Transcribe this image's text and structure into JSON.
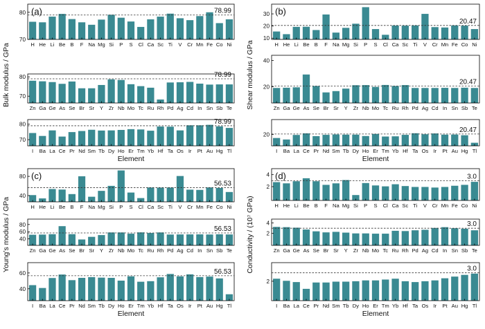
{
  "refs": [
    "78.99",
    "20.47",
    "56.53",
    "3.0"
  ],
  "chart_data": [
    {
      "type": "bar",
      "panel": "(a)",
      "ylabel": "Bulk modulus / GPa",
      "xlabel": "Element",
      "reference_value": 78.99,
      "reference_label": "78.99",
      "rows": [
        {
          "categories": [
            "H",
            "He",
            "Li",
            "Be",
            "B",
            "F",
            "Na",
            "Mg",
            "Si",
            "P",
            "S",
            "Cl",
            "Ca",
            "Sc",
            "Ti",
            "V",
            "Cr",
            "Mn",
            "Fe",
            "Co",
            "Ni"
          ],
          "values": [
            76.5,
            76.3,
            78.4,
            79.4,
            77.5,
            76.3,
            75.4,
            77.3,
            79.1,
            78.0,
            76.6,
            74.6,
            77.4,
            78.4,
            79.5,
            77.8,
            77.1,
            78.6,
            80.0,
            76.0,
            77.4
          ],
          "ylim": [
            70,
            83
          ],
          "yticks": [
            70,
            80
          ]
        },
        {
          "categories": [
            "Zn",
            "Ga",
            "Ge",
            "As",
            "Se",
            "Br",
            "Sr",
            "Y",
            "Zr",
            "Nb",
            "Mo",
            "Tc",
            "Ru",
            "Rh",
            "Pd",
            "Ag",
            "Cd",
            "In",
            "Sn",
            "Sb",
            "Te"
          ],
          "values": [
            78.0,
            77.7,
            77.3,
            76.4,
            77.6,
            74.1,
            74.1,
            75.8,
            78.7,
            78.4,
            76.2,
            75.2,
            74.4,
            68.3,
            77.1,
            77.2,
            77.4,
            76.5,
            76.0,
            76.1,
            76.1
          ],
          "ylim": [
            66.5,
            81.5
          ],
          "yticks": [
            70,
            80
          ]
        },
        {
          "categories": [
            "I",
            "Ba",
            "La",
            "Ce",
            "Pr",
            "Nd",
            "Sm",
            "Tb",
            "Dy",
            "Ho",
            "Er",
            "Tm",
            "Yb",
            "Hf",
            "Ta",
            "Os",
            "Ir",
            "Pt",
            "Au",
            "Hg",
            "Tl"
          ],
          "values": [
            74.3,
            72.4,
            76.0,
            72.0,
            74.9,
            75.6,
            76.4,
            75.9,
            76.0,
            76.3,
            76.8,
            76.6,
            75.8,
            78.5,
            78.4,
            76.0,
            79.3,
            79.3,
            79.6,
            78.6,
            77.6
          ],
          "ylim": [
            66,
            83
          ],
          "yticks": [
            70,
            80
          ]
        }
      ]
    },
    {
      "type": "bar",
      "panel": "(b)",
      "ylabel": "Shear modulus / GPa",
      "xlabel": "Element",
      "reference_value": 20.47,
      "reference_label": "20.47",
      "rows": [
        {
          "categories": [
            "H",
            "He",
            "Li",
            "Be",
            "B",
            "F",
            "Na",
            "Mg",
            "Si",
            "P",
            "S",
            "Cl",
            "Ca",
            "Sc",
            "Ti",
            "V",
            "Cr",
            "Mn",
            "Fe",
            "Co",
            "Ni"
          ],
          "values": [
            15.5,
            13.3,
            19.3,
            19.4,
            16.7,
            29.5,
            14.6,
            18.5,
            21.9,
            35.5,
            17.5,
            12.8,
            20.4,
            20.3,
            20.5,
            30.0,
            19.1,
            18.8,
            20.5,
            20.3,
            17.5
          ],
          "ylim": [
            9,
            38
          ],
          "yticks": [
            10,
            20,
            30
          ]
        },
        {
          "categories": [
            "Zn",
            "Ga",
            "Ge",
            "As",
            "Se",
            "Br",
            "Sr",
            "Y",
            "Zr",
            "Nb",
            "Mo",
            "Tc",
            "Ru",
            "Rh",
            "Pd",
            "Ag",
            "Cd",
            "In",
            "Sn",
            "Sb",
            "Te"
          ],
          "values": [
            19.0,
            19.2,
            19.5,
            29.3,
            20.5,
            15.6,
            16.6,
            18.5,
            21.1,
            21.2,
            19.8,
            21.3,
            20.5,
            21.2,
            19.0,
            19.0,
            19.0,
            19.1,
            19.0,
            19.2,
            19.0
          ],
          "ylim": [
            7.5,
            44
          ],
          "yticks": [
            20,
            40
          ]
        },
        {
          "categories": [
            "I",
            "Ba",
            "La",
            "Ce",
            "Pr",
            "Nd",
            "Sm",
            "Tb",
            "Dy",
            "Ho",
            "Er",
            "Tm",
            "Yb",
            "Hf",
            "Ta",
            "Os",
            "Ir",
            "Pt",
            "Au",
            "Hg",
            "Tl"
          ],
          "values": [
            16.4,
            14.9,
            19.5,
            21.1,
            18.3,
            19.6,
            20.0,
            19.8,
            19.8,
            18.4,
            20.5,
            17.9,
            18.1,
            19.6,
            21.2,
            20.2,
            21.0,
            19.8,
            19.9,
            19.2,
            11.6
          ],
          "ylim": [
            8.5,
            35
          ],
          "yticks": [
            20
          ]
        }
      ]
    },
    {
      "type": "bar",
      "panel": "(c)",
      "ylabel": "Young’s modulus / GPa",
      "xlabel": "Element",
      "reference_value": 56.53,
      "reference_label": "56.53",
      "rows": [
        {
          "categories": [
            "H",
            "He",
            "Li",
            "Be",
            "B",
            "F",
            "Na",
            "Mg",
            "Si",
            "P",
            "S",
            "Cl",
            "Ca",
            "Sc",
            "Ti",
            "V",
            "Cr",
            "Mn",
            "Fe",
            "Co",
            "Ni"
          ],
          "values": [
            41.0,
            34.1,
            53.6,
            52.5,
            43.1,
            80.1,
            37.6,
            49.8,
            60.2,
            92.3,
            46.3,
            34.8,
            56.8,
            56.5,
            56.7,
            80.7,
            52.3,
            51.8,
            56.9,
            55.8,
            47.4
          ],
          "ylim": [
            27,
            96
          ],
          "yticks": [
            40,
            80
          ]
        },
        {
          "categories": [
            "Zn",
            "Ga",
            "Ge",
            "As",
            "Se",
            "Br",
            "Sr",
            "Y",
            "Zr",
            "Nb",
            "Mo",
            "Tc",
            "Ru",
            "Rh",
            "Pd",
            "Ag",
            "Cd",
            "In",
            "Sn",
            "Sb",
            "Te"
          ],
          "values": [
            51.5,
            52.0,
            53.0,
            75.4,
            53.1,
            38.4,
            45.7,
            50.6,
            57.9,
            57.9,
            54.5,
            58.1,
            56.4,
            57.9,
            52.1,
            52.4,
            52.5,
            52.6,
            52.2,
            52.8,
            52.3
          ],
          "ylim": [
            22,
            95
          ],
          "yticks": [
            40,
            60,
            80
          ]
        },
        {
          "categories": [
            "I",
            "Ba",
            "La",
            "Ce",
            "Pr",
            "Nd",
            "Sm",
            "Tb",
            "Dy",
            "Ho",
            "Er",
            "Tm",
            "Yb",
            "Hf",
            "Ta",
            "Os",
            "Ir",
            "Pt",
            "Au",
            "Hg",
            "Tl"
          ],
          "values": [
            44.6,
            41.0,
            53.6,
            58.0,
            50.9,
            53.8,
            54.7,
            54.1,
            53.8,
            50.3,
            55.7,
            48.9,
            49.6,
            54.5,
            58.7,
            55.7,
            58.2,
            54.8,
            55.4,
            53.1,
            33.1
          ],
          "ylim": [
            25,
            73
          ],
          "yticks": [
            40,
            60
          ]
        }
      ]
    },
    {
      "type": "bar",
      "panel": "(d)",
      "ylabel": "Conductivity / (10⁷ GPa)",
      "xlabel": "Element",
      "reference_value": 3.0,
      "reference_label": "3.0",
      "rows": [
        {
          "categories": [
            "H",
            "He",
            "Li",
            "Be",
            "B",
            "F",
            "Na",
            "Mg",
            "Si",
            "P",
            "S",
            "Cl",
            "Ca",
            "Sc",
            "Ti",
            "V",
            "Cr",
            "Mn",
            "Fe",
            "Co",
            "Ni"
          ],
          "values": [
            2.75,
            2.55,
            2.9,
            3.4,
            2.9,
            2.3,
            2.55,
            3.1,
            0.6,
            2.6,
            2.2,
            2.05,
            2.4,
            2.1,
            1.95,
            1.95,
            1.85,
            1.95,
            2.15,
            2.3,
            2.8
          ],
          "ylim": [
            -0.3,
            5.0
          ],
          "yticks": [
            2,
            4
          ]
        },
        {
          "categories": [
            "Zn",
            "Ga",
            "Ge",
            "As",
            "Se",
            "Br",
            "Sr",
            "Y",
            "Zr",
            "Nb",
            "Mo",
            "Tc",
            "Ru",
            "Rh",
            "Pd",
            "Ag",
            "Cd",
            "In",
            "Sn",
            "Sb",
            "Te"
          ],
          "values": [
            3.25,
            3.2,
            3.1,
            2.75,
            2.4,
            2.2,
            2.3,
            2.15,
            2.0,
            2.0,
            1.95,
            1.95,
            2.5,
            2.45,
            2.6,
            2.7,
            3.05,
            3.2,
            3.0,
            2.9,
            2.6
          ],
          "ylim": [
            -0.3,
            4.75
          ],
          "yticks": [
            2,
            4
          ]
        },
        {
          "categories": [
            "I",
            "Ba",
            "La",
            "Ce",
            "Pr",
            "Nd",
            "Sm",
            "Tb",
            "Dy",
            "Ho",
            "Er",
            "Tm",
            "Yb",
            "Hf",
            "Ta",
            "Os",
            "Ir",
            "Pt",
            "Au",
            "Hg",
            "Tl"
          ],
          "values": [
            2.3,
            2.05,
            1.9,
            1.1,
            1.85,
            1.85,
            1.95,
            1.95,
            2.0,
            2.1,
            2.1,
            2.2,
            2.3,
            2.0,
            1.9,
            2.0,
            2.1,
            2.35,
            2.55,
            2.75,
            2.9
          ],
          "ylim": [
            -0.3,
            4.2
          ],
          "yticks": [
            2
          ]
        }
      ]
    }
  ]
}
